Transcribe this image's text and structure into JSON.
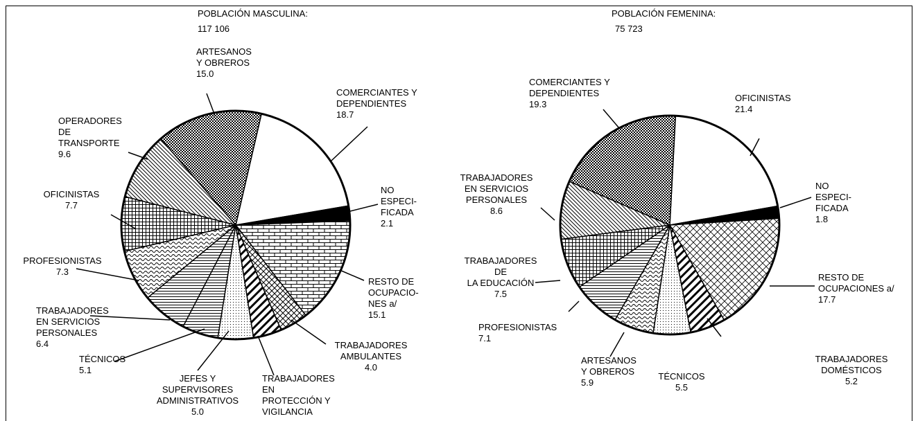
{
  "chart_data": [
    {
      "type": "pie",
      "title": "POBLACIÓN MASCULINA:",
      "subtitle": "117 106",
      "categories": [
        "COMERCIANTES Y\nDEPENDIENTES",
        "NO\nESPECI-\nFICADA",
        "RESTO DE\nOCUPACIO-\nNES a/",
        "TRABAJADORES\nAMBULANTES",
        "TRABAJADORES\nEN\nPROTECCIÓN Y\nVIGILANCIA",
        "JEFES Y\nSUPERVISORES\nADMINISTRATIVOS",
        "TÉCNICOS",
        "TRABAJADORES\nEN SERVICIOS\nPERSONALES",
        "PROFESIONISTAS",
        "OFICINISTAS",
        "OPERADORES\nDE\nTRANSPORTE",
        "ARTESANOS\nY OBREROS"
      ],
      "values": [
        18.7,
        2.1,
        15.1,
        4.0,
        4.0,
        5.0,
        5.1,
        6.4,
        7.3,
        7.7,
        9.6,
        15.0
      ],
      "value_labels": [
        "18.7",
        "2.1",
        "15.1",
        "4.0",
        null,
        "5.0",
        "5.1",
        "6.4",
        "7.3",
        "7.7",
        "9.6",
        "15.0"
      ]
    },
    {
      "type": "pie",
      "title": "POBLACIÓN FEMENINA:",
      "subtitle": "75 723",
      "categories": [
        "OFICINISTAS",
        "NO\nESPECI-\nFICADA",
        "RESTO DE\nOCUPACIONES a/",
        "TRABAJADORES\nDOMÉSTICOS",
        "TÉCNICOS",
        "ARTESANOS\nY OBREROS",
        "PROFESIONISTAS",
        "TRABAJADORES\nDE\nLA EDUCACIÓN",
        "TRABAJADORES\nEN SERVICIOS\nPERSONALES",
        "COMERCIANTES Y\nDEPENDIENTES"
      ],
      "values": [
        21.4,
        1.8,
        17.7,
        5.2,
        5.5,
        5.9,
        7.1,
        7.5,
        8.6,
        19.3
      ],
      "value_labels": [
        "21.4",
        "1.8",
        "17.7",
        "5.2",
        "5.5",
        "5.9",
        "7.1",
        "7.5",
        "8.6",
        "19.3"
      ]
    }
  ]
}
